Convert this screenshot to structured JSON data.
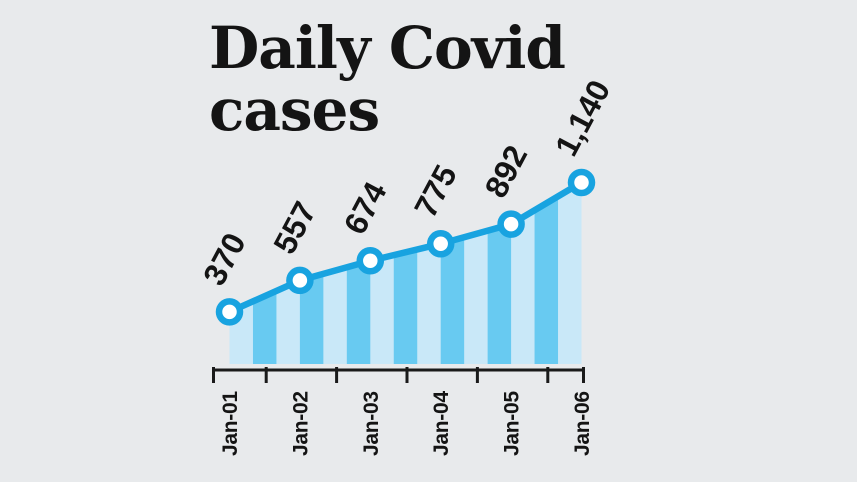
{
  "title": {
    "line1": "Daily Covid",
    "line2": "cases"
  },
  "chart_data": {
    "type": "line",
    "title": "Daily Covid cases",
    "categories": [
      "Jan-01",
      "Jan-02",
      "Jan-03",
      "Jan-04",
      "Jan-05",
      "Jan-06"
    ],
    "values": [
      370,
      557,
      674,
      775,
      892,
      1140
    ],
    "value_labels": [
      "370",
      "557",
      "674",
      "775",
      "892",
      "1,140"
    ],
    "xlabel": "",
    "ylabel": "",
    "ylim": [
      0,
      1200
    ],
    "grid": false,
    "legend": "none",
    "marker": "circle",
    "area_style": "vertical-stripes",
    "colors": {
      "background": "#e8eaec",
      "line": "#18a3e0",
      "marker_fill": "#ffffff",
      "stripe_light": "#c9e8f8",
      "stripe_dark": "#68caf1",
      "axis": "#1a1a1a",
      "text": "#141414"
    }
  }
}
